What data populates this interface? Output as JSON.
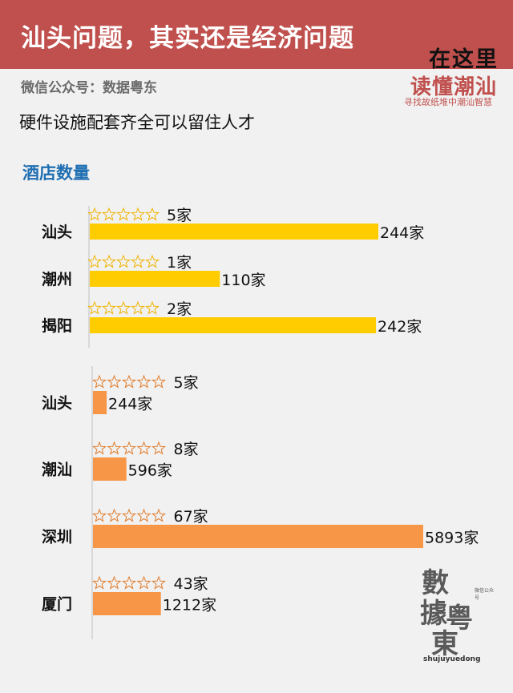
{
  "header": {
    "title": "汕头问题，其实还是经济问题",
    "logo_line1": "在这里",
    "logo_line2": "读懂潮汕",
    "logo_line3": "寻找故纸堆中潮汕智慧"
  },
  "source": "微信公众号：数据粤东",
  "subtitle": "硬件设施配套齐全可以留住人才",
  "section_title": "酒店数量",
  "watermark": {
    "c1": "數",
    "c2": "據",
    "c3": "粤",
    "c4": "東",
    "small": "微信公众号",
    "url": "shujuyuedong"
  },
  "colors": {
    "header": "#c0504d",
    "bar_yellow": "#ffcc00",
    "bar_orange": "#f79646",
    "section": "#1f6fb2"
  },
  "chart_data": [
    {
      "type": "bar",
      "orientation": "horizontal",
      "categories": [
        "汕头",
        "潮州",
        "揭阳"
      ],
      "series": [
        {
          "values": [
            244,
            110,
            242
          ],
          "labels": [
            "244家",
            "110家",
            "242家"
          ]
        }
      ],
      "five_star": [
        5,
        1,
        2
      ],
      "five_star_labels": [
        "5家",
        "1家",
        "2家"
      ],
      "star_icon": "five-star-outline-icon"
    },
    {
      "type": "bar",
      "orientation": "horizontal",
      "categories": [
        "汕头",
        "潮汕",
        "深圳",
        "厦门"
      ],
      "series": [
        {
          "values": [
            244,
            596,
            5893,
            1212
          ],
          "labels": [
            "244家",
            "596家",
            "5893家",
            "1212家"
          ]
        }
      ],
      "five_star": [
        5,
        8,
        67,
        43
      ],
      "five_star_labels": [
        "5家",
        "8家",
        "67家",
        "43家"
      ],
      "star_icon": "five-star-outline-icon"
    }
  ]
}
